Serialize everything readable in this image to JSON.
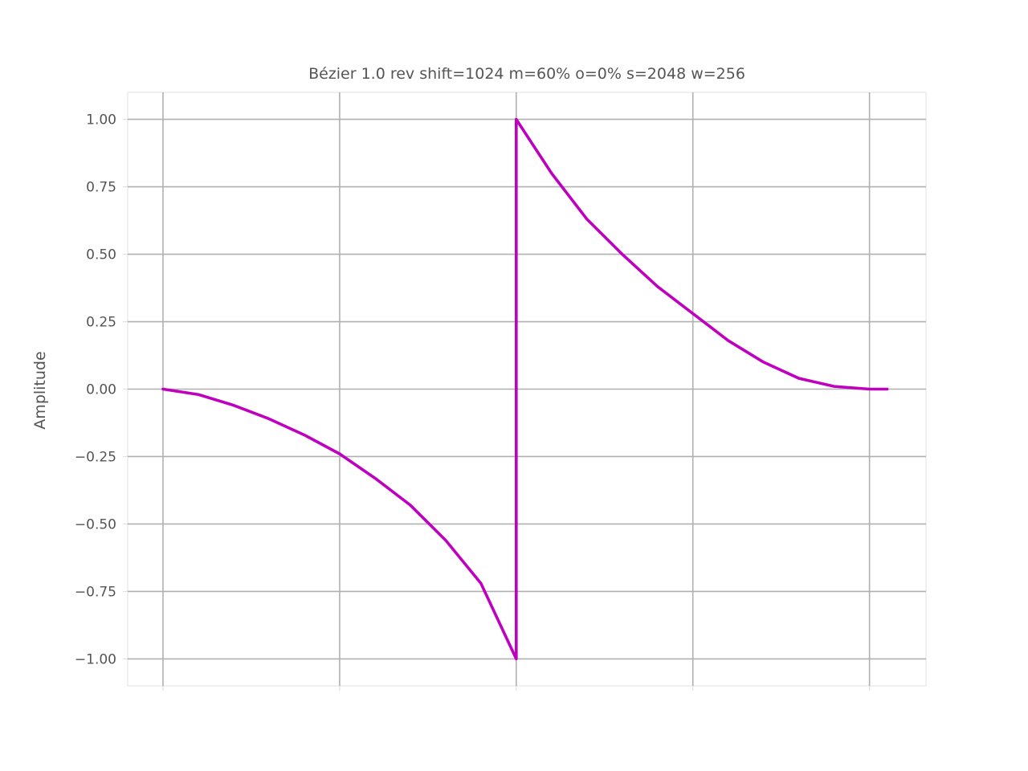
{
  "chart_data": {
    "type": "line",
    "title": "Bézier 1.0 rev shift=1024 m=60% o=0% s=2048 w=256",
    "xlabel": "",
    "ylabel": "Amplitude",
    "xlim": [
      -0.1,
      2.16
    ],
    "ylim": [
      -1.1,
      1.1
    ],
    "grid": true,
    "x_ticks": [
      0,
      0.5,
      1.0,
      1.5,
      2.0
    ],
    "x_tick_labels": [
      "",
      "",
      "",
      "",
      ""
    ],
    "y_ticks": [
      1.0,
      0.75,
      0.5,
      0.25,
      0.0,
      -0.25,
      -0.5,
      -0.75,
      -1.0
    ],
    "y_tick_labels": [
      "1.00",
      "0.75",
      "0.50",
      "0.25",
      "0.00",
      "−0.25",
      "−0.50",
      "−0.75",
      "−1.00"
    ],
    "series": [
      {
        "color": "#bf00bf",
        "x": [
          0.0,
          0.1,
          0.2,
          0.3,
          0.4,
          0.5,
          0.6,
          0.7,
          0.8,
          0.9,
          1.0,
          1.0,
          1.1,
          1.2,
          1.3,
          1.4,
          1.5,
          1.6,
          1.7,
          1.8,
          1.9,
          2.0,
          2.05
        ],
        "y": [
          0.0,
          -0.02,
          -0.06,
          -0.11,
          -0.17,
          -0.24,
          -0.33,
          -0.43,
          -0.56,
          -0.72,
          -1.0,
          1.0,
          0.8,
          0.63,
          0.5,
          0.38,
          0.28,
          0.18,
          0.1,
          0.04,
          0.01,
          0.0,
          0.0
        ]
      }
    ]
  }
}
